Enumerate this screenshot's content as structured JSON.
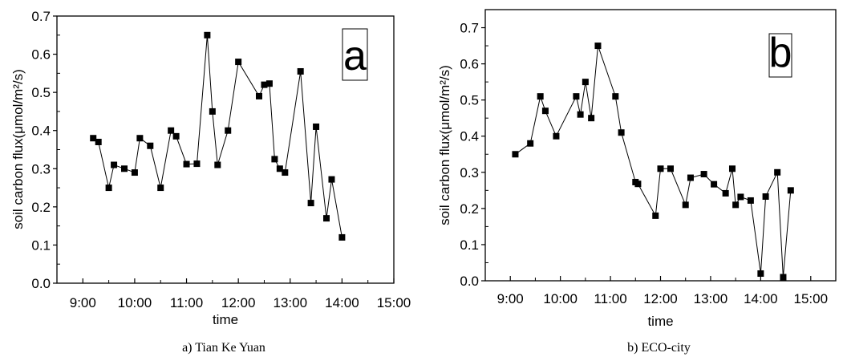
{
  "chart_data": [
    {
      "type": "line",
      "panel_label": "a",
      "caption": "a) Tian Ke Yuan",
      "xlabel": "time",
      "ylabel": "soil carbon flux(μmol/m²/s)",
      "xlim": [
        "8:30",
        "15:00"
      ],
      "ylim": [
        0,
        0.7
      ],
      "xticks": [
        "9:00",
        "10:00",
        "11:00",
        "12:00",
        "13:00",
        "14:00",
        "15:00"
      ],
      "yticks": [
        "0.0",
        "0.1",
        "0.2",
        "0.3",
        "0.4",
        "0.5",
        "0.6",
        "0.7"
      ],
      "marker": "square",
      "color": "#000000",
      "grid": false,
      "x": [
        "9:12",
        "9:18",
        "9:30",
        "9:36",
        "9:48",
        "10:00",
        "10:06",
        "10:18",
        "10:30",
        "10:42",
        "10:48",
        "11:00",
        "11:12",
        "11:24",
        "11:30",
        "11:36",
        "11:48",
        "12:00",
        "12:24",
        "12:30",
        "12:36",
        "12:42",
        "12:48",
        "12:54",
        "13:12",
        "13:24",
        "13:30",
        "13:42",
        "13:48",
        "14:00"
      ],
      "y": [
        0.38,
        0.37,
        0.25,
        0.31,
        0.3,
        0.29,
        0.38,
        0.36,
        0.25,
        0.4,
        0.385,
        0.312,
        0.313,
        0.65,
        0.45,
        0.31,
        0.4,
        0.58,
        0.49,
        0.52,
        0.523,
        0.325,
        0.3,
        0.29,
        0.555,
        0.21,
        0.41,
        0.17,
        0.272,
        0.12
      ]
    },
    {
      "type": "line",
      "panel_label": "b",
      "caption": "b) ECO-city",
      "xlabel": "time",
      "ylabel": "soil carbon flux(μmol/m²/s)",
      "xlim": [
        "8:30",
        "15:30"
      ],
      "ylim": [
        0,
        0.75
      ],
      "xticks": [
        "9:00",
        "10:00",
        "11:00",
        "12:00",
        "13:00",
        "14:00",
        "15:00"
      ],
      "yticks": [
        "0.0",
        "0.1",
        "0.2",
        "0.3",
        "0.4",
        "0.5",
        "0.6",
        "0.7"
      ],
      "marker": "square",
      "color": "#000000",
      "grid": false,
      "x": [
        "9:06",
        "9:24",
        "9:36",
        "9:42",
        "9:55",
        "10:19",
        "10:24",
        "10:30",
        "10:37",
        "10:45",
        "11:06",
        "11:13",
        "11:30",
        "11:33",
        "11:54",
        "12:00",
        "12:12",
        "12:30",
        "12:36",
        "12:52",
        "13:04",
        "13:18",
        "13:26",
        "13:30",
        "13:36",
        "13:48",
        "14:00",
        "14:06",
        "14:20",
        "14:27",
        "14:36"
      ],
      "y": [
        0.35,
        0.38,
        0.51,
        0.47,
        0.4,
        0.51,
        0.46,
        0.55,
        0.45,
        0.65,
        0.51,
        0.41,
        0.273,
        0.268,
        0.18,
        0.31,
        0.31,
        0.21,
        0.285,
        0.295,
        0.267,
        0.242,
        0.31,
        0.21,
        0.232,
        0.222,
        0.02,
        0.233,
        0.3,
        0.01,
        0.25
      ]
    }
  ]
}
